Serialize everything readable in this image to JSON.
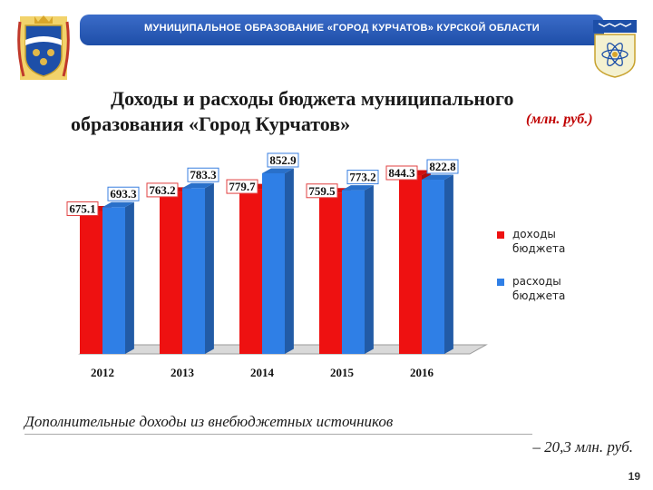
{
  "header": {
    "banner_text": "МУНИЦИПАЛЬНОЕ ОБРАЗОВАНИЕ «ГОРОД КУРЧАТОВ» КУРСКОЙ ОБЛАСТИ",
    "emblem_left_icon": "kursk-oblast-coat-of-arms-icon",
    "emblem_right_icon": "kurchatov-city-coat-of-arms-icon"
  },
  "title": {
    "line1": "Доходы и расходы бюджета муниципального",
    "line2": "образования «Город Курчатов»",
    "units": "(млн. руб.)"
  },
  "chart_data": {
    "type": "bar",
    "categories": [
      "2012",
      "2013",
      "2014",
      "2015",
      "2016"
    ],
    "series": [
      {
        "name": "доходы бюджета",
        "color": "#ee1111",
        "values": [
          675.1,
          763.2,
          779.7,
          759.5,
          844.3
        ],
        "labels": [
          "675.1",
          "763.2",
          "779.7",
          "759.5",
          "844.3"
        ]
      },
      {
        "name": "расходы бюджета",
        "color": "#2f7fe6",
        "values": [
          693.3,
          783.3,
          852.9,
          773.2,
          822.8
        ],
        "labels": [
          "693.3",
          "783.3",
          "852.9",
          "773.2",
          "822.8"
        ]
      }
    ],
    "ylim": [
      0,
      900
    ],
    "grid": false,
    "legend": "right"
  },
  "legend": {
    "items": [
      {
        "label": "доходы бюджета",
        "color": "#ee1111"
      },
      {
        "label": "расходы бюджета",
        "color": "#2f7fe6"
      }
    ]
  },
  "footnote": {
    "line1": "Дополнительные доходы из внебюджетных источников",
    "line2": "– 20,3 млн. руб."
  },
  "page_number": "19"
}
